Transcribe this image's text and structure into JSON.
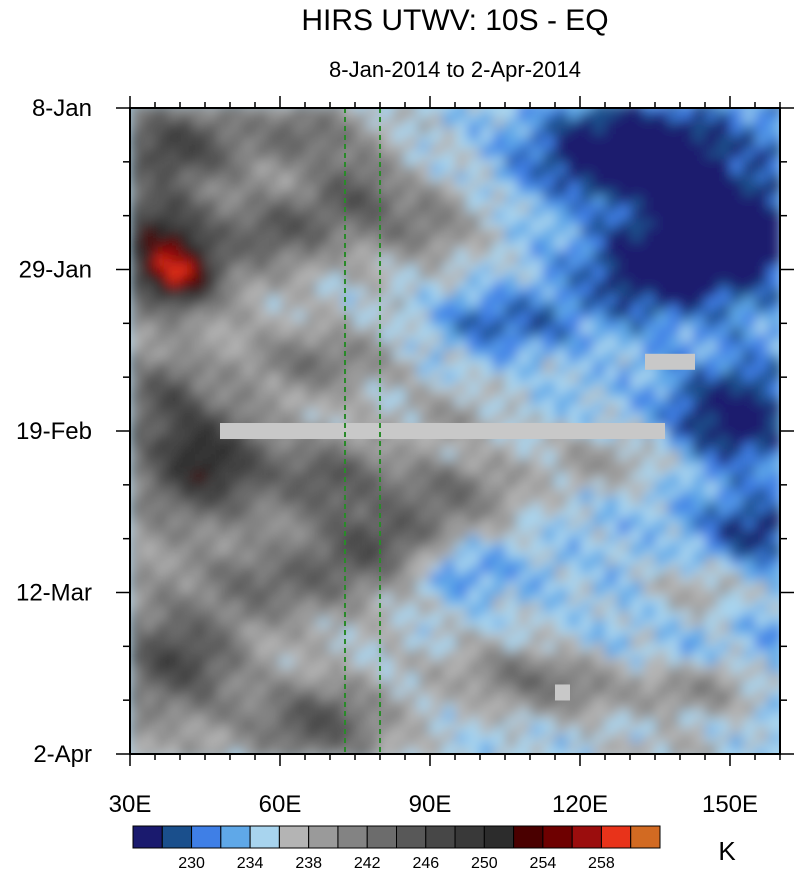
{
  "chart_data": {
    "type": "heatmap",
    "title": "HIRS UTWV: 10S - EQ",
    "subtitle": "8-Jan-2014 to 2-Apr-2014",
    "x_axis": {
      "range": [
        30,
        160
      ],
      "ticks": [
        30,
        60,
        90,
        120,
        150
      ],
      "tick_labels": [
        "30E",
        "60E",
        "90E",
        "120E",
        "150E"
      ],
      "minor_step": 5
    },
    "y_axis": {
      "range": [
        "2014-01-08",
        "2014-04-02"
      ],
      "tick_labels": [
        "8-Jan",
        "29-Jan",
        "19-Feb",
        "12-Mar",
        "2-Apr"
      ],
      "tick_dates": [
        "2014-01-08",
        "2014-01-29",
        "2014-02-19",
        "2014-03-12",
        "2014-04-02"
      ],
      "orientation": "time increasing downward"
    },
    "reference_lines": [
      {
        "longitude": 73,
        "style": "dashed",
        "color": "#2a8a2a"
      },
      {
        "longitude": 80,
        "style": "dashed",
        "color": "#2a8a2a"
      }
    ],
    "colorbar": {
      "unit": "K",
      "levels": [
        228,
        230,
        232,
        234,
        236,
        238,
        240,
        242,
        244,
        246,
        248,
        250,
        252,
        254,
        256,
        258
      ],
      "labels": [
        "230",
        "234",
        "238",
        "242",
        "246",
        "250",
        "254",
        "258"
      ],
      "colors": [
        "#1a1a6e",
        "#1a4f8c",
        "#3f7fe6",
        "#5fa8e8",
        "#a8d4ee",
        "#b4b4b4",
        "#9a9a9a",
        "#838383",
        "#6c6c6c",
        "#585858",
        "#474747",
        "#393939",
        "#2c2c2c",
        "#4a0000",
        "#6e0000",
        "#9b0d0d",
        "#e8331a",
        "#d26a22"
      ]
    },
    "missing_data": [
      {
        "lon_range": [
          48,
          137
        ],
        "date": "2014-02-19"
      },
      {
        "lon_range": [
          133,
          143
        ],
        "date": "2014-02-10"
      },
      {
        "lon_range": [
          115,
          118
        ],
        "date": "2014-03-25"
      }
    ]
  }
}
